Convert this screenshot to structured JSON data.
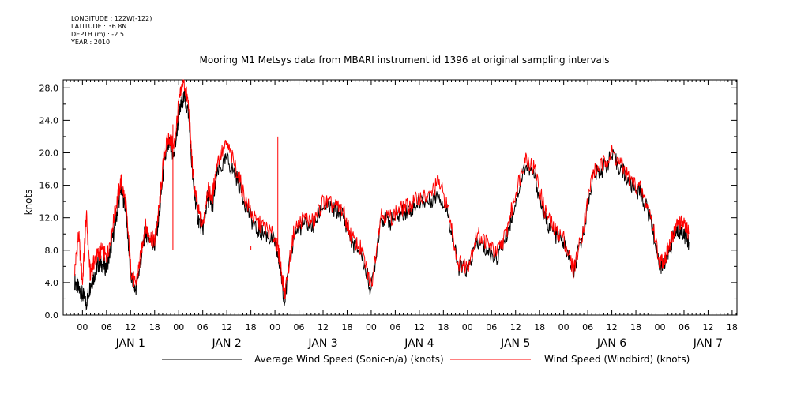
{
  "meta": {
    "longitude": "LONGITUDE : 122W(-122)",
    "latitude": "LATITUDE : 36.8N",
    "depth": "DEPTH (m) : -2.5",
    "year": "YEAR : 2010"
  },
  "chart_data": {
    "type": "line",
    "title": "Mooring M1 Metsys data from MBARI instrument id 1396 at original sampling intervals",
    "xlabel": "",
    "ylabel": "knots",
    "xlim": [
      -0.2,
      6.8
    ],
    "ylim": [
      0,
      29
    ],
    "yticks": [
      0.0,
      4.0,
      8.0,
      12.0,
      16.0,
      20.0,
      24.0,
      28.0
    ],
    "ytick_labels": [
      "0.0",
      "4.0",
      "8.0",
      "12.0",
      "16.0",
      "20.0",
      "24.0",
      "28.0"
    ],
    "hour_tick_labels": [
      "00",
      "06",
      "12",
      "18"
    ],
    "day_labels": [
      "JAN  1",
      "JAN  2",
      "JAN  3",
      "JAN  4",
      "JAN  5",
      "JAN  6",
      "JAN  7"
    ],
    "grid": false,
    "legend_position": "bottom",
    "series": [
      {
        "name": "Average Wind Speed (Sonic-n/a) (knots)",
        "color": "#000000",
        "x": [
          -0.08,
          -0.04,
          0.0,
          0.04,
          0.08,
          0.12,
          0.16,
          0.2,
          0.25,
          0.3,
          0.35,
          0.4,
          0.45,
          0.5,
          0.55,
          0.6,
          0.65,
          0.7,
          0.75,
          0.8,
          0.85,
          0.9,
          0.95,
          1.0,
          1.05,
          1.1,
          1.15,
          1.2,
          1.25,
          1.3,
          1.35,
          1.4,
          1.5,
          1.6,
          1.7,
          1.8,
          1.9,
          2.0,
          2.05,
          2.1,
          2.2,
          2.3,
          2.4,
          2.5,
          2.6,
          2.7,
          2.8,
          2.9,
          3.0,
          3.1,
          3.2,
          3.3,
          3.4,
          3.5,
          3.6,
          3.7,
          3.8,
          3.9,
          4.0,
          4.1,
          4.2,
          4.3,
          4.4,
          4.5,
          4.6,
          4.7,
          4.8,
          4.9,
          5.0,
          5.1,
          5.2,
          5.3,
          5.4,
          5.5,
          5.6,
          5.7,
          5.8,
          5.9,
          6.0,
          6.05,
          6.1,
          6.15,
          6.2,
          6.25,
          6.3
        ],
        "values": [
          4.2,
          3.2,
          2.5,
          1.5,
          3.6,
          4.8,
          6.2,
          6.4,
          5.8,
          8.5,
          12.0,
          15.5,
          13.2,
          5.0,
          3.0,
          6.2,
          10.2,
          9.4,
          8.5,
          12.5,
          19.0,
          21.0,
          19.5,
          24.5,
          27.0,
          25.0,
          16.0,
          12.0,
          10.5,
          14.5,
          13.2,
          17.5,
          19.2,
          17.0,
          13.5,
          10.5,
          10.0,
          9.0,
          6.0,
          1.8,
          10.0,
          11.2,
          11.0,
          13.5,
          13.0,
          12.5,
          9.0,
          7.5,
          3.0,
          12.0,
          11.5,
          12.5,
          13.0,
          14.0,
          14.0,
          15.0,
          12.5,
          6.0,
          5.5,
          9.0,
          8.0,
          7.0,
          9.5,
          14.0,
          18.5,
          17.0,
          12.0,
          10.0,
          9.0,
          5.0,
          10.0,
          17.0,
          18.0,
          19.5,
          18.0,
          16.0,
          15.0,
          12.0,
          6.0,
          6.5,
          8.0,
          10.0,
          10.5,
          10.0,
          9.0
        ]
      },
      {
        "name": "Wind Speed (Windbird) (knots)",
        "color": "#ff0000",
        "x": [
          -0.08,
          -0.04,
          0.0,
          0.04,
          0.08,
          0.12,
          0.16,
          0.2,
          0.25,
          0.3,
          0.35,
          0.4,
          0.45,
          0.5,
          0.55,
          0.6,
          0.65,
          0.7,
          0.75,
          0.8,
          0.85,
          0.9,
          0.95,
          1.0,
          1.05,
          1.1,
          1.15,
          1.2,
          1.25,
          1.3,
          1.35,
          1.4,
          1.5,
          1.6,
          1.7,
          1.8,
          1.9,
          2.0,
          2.05,
          2.1,
          2.2,
          2.3,
          2.4,
          2.5,
          2.6,
          2.7,
          2.8,
          2.9,
          3.0,
          3.1,
          3.2,
          3.3,
          3.4,
          3.5,
          3.6,
          3.7,
          3.8,
          3.9,
          4.0,
          4.1,
          4.2,
          4.3,
          4.4,
          4.5,
          4.6,
          4.7,
          4.8,
          4.9,
          5.0,
          5.1,
          5.2,
          5.3,
          5.4,
          5.5,
          5.6,
          5.7,
          5.8,
          5.9,
          6.0,
          6.05,
          6.1,
          6.15,
          6.2,
          6.25,
          6.3
        ],
        "values": [
          5.5,
          10.0,
          4.0,
          12.3,
          5.0,
          6.5,
          7.5,
          8.0,
          7.0,
          10.0,
          13.5,
          16.5,
          13.8,
          6.0,
          3.5,
          6.8,
          11.0,
          9.8,
          9.0,
          13.5,
          20.0,
          22.0,
          20.5,
          26.0,
          29.0,
          26.0,
          17.0,
          13.0,
          11.0,
          15.5,
          14.5,
          19.0,
          21.0,
          18.0,
          14.0,
          11.5,
          10.8,
          9.5,
          7.0,
          2.5,
          10.5,
          12.0,
          11.5,
          14.0,
          13.5,
          13.0,
          9.5,
          8.0,
          3.5,
          12.5,
          12.0,
          13.0,
          13.5,
          14.5,
          14.5,
          16.5,
          13.0,
          6.5,
          6.0,
          10.0,
          9.0,
          7.5,
          10.0,
          15.0,
          19.5,
          18.0,
          13.0,
          10.5,
          9.5,
          5.5,
          10.5,
          17.5,
          18.5,
          20.0,
          18.5,
          16.5,
          15.5,
          12.5,
          6.5,
          7.0,
          8.5,
          10.5,
          11.5,
          11.0,
          10.0
        ]
      }
    ],
    "spikes": [
      {
        "x": 2.03,
        "value": 22.0,
        "series": 1
      },
      {
        "x": 0.94,
        "value": 23.5,
        "series": 1
      },
      {
        "x": 1.75,
        "value": 8.5,
        "series": 1
      }
    ]
  }
}
